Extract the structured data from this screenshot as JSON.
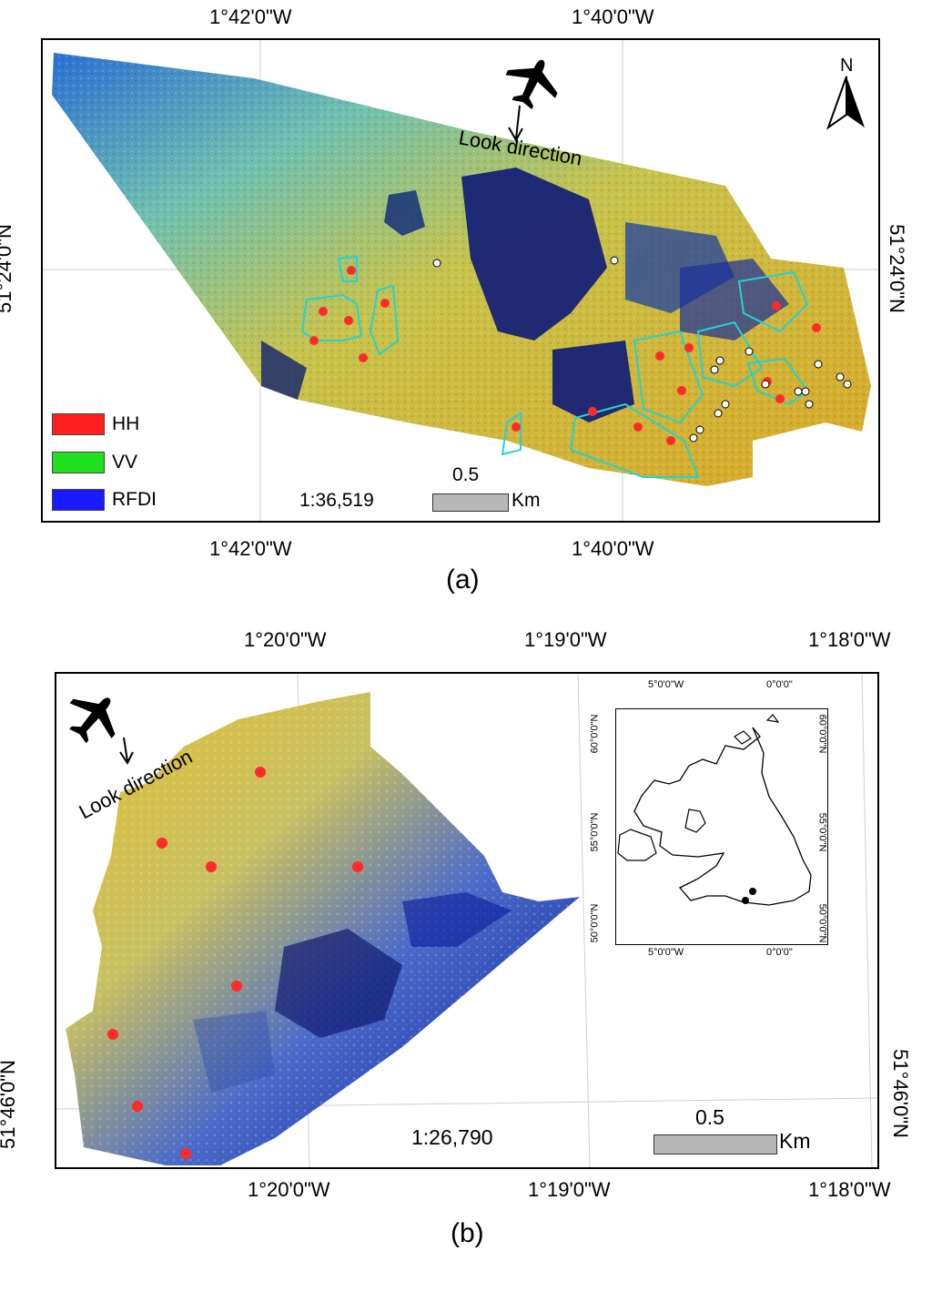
{
  "panel_a": {
    "label": "(a)",
    "top_lon_labels": [
      "1°42'0\"W",
      "1°40'0\"W"
    ],
    "bottom_lon_labels": [
      "1°42'0\"W",
      "1°40'0\"W"
    ],
    "lat_label_left": "51°24'0\"N",
    "lat_label_right": "51°24'0\"N",
    "north_label": "N",
    "look_direction": "Look direction",
    "scale_ratio": "1:36,519",
    "scale_value": "0.5",
    "scale_unit": "Km",
    "legend": [
      {
        "label": "HH",
        "color": "#ff2020"
      },
      {
        "label": "VV",
        "color": "#20e020"
      },
      {
        "label": "RFDI",
        "color": "#1a1aff"
      }
    ]
  },
  "panel_b": {
    "label": "(b)",
    "top_lon_labels": [
      "1°20'0\"W",
      "1°19'0\"W",
      "1°18'0\"W"
    ],
    "bottom_lon_labels": [
      "1°20'0\"W",
      "1°19'0\"W",
      "1°18'0\"W"
    ],
    "lat_label_left": "51°46'0\"N",
    "lat_label_right": "51°46'0\"N",
    "look_direction": "Look direction",
    "scale_ratio": "1:26,790",
    "scale_value": "0.5",
    "scale_unit": "Km",
    "inset": {
      "top_labels": [
        "5°0'0\"W",
        "0°0'0\""
      ],
      "bottom_labels": [
        "5°0'0\"W",
        "0°0'0\""
      ],
      "left_labels": [
        "60°0'0\"N",
        "55°0'0\"N",
        "50°0'0\"N"
      ],
      "right_labels": [
        "60°0'0\"N",
        "55°0'0\"N",
        "50°0'0\"N"
      ]
    }
  },
  "colors": {
    "sample_point": "#ff2a2a",
    "reference_point": "#ffffff",
    "field_outline": "#22d3d3",
    "scale_bar": "#b8b8b8"
  }
}
